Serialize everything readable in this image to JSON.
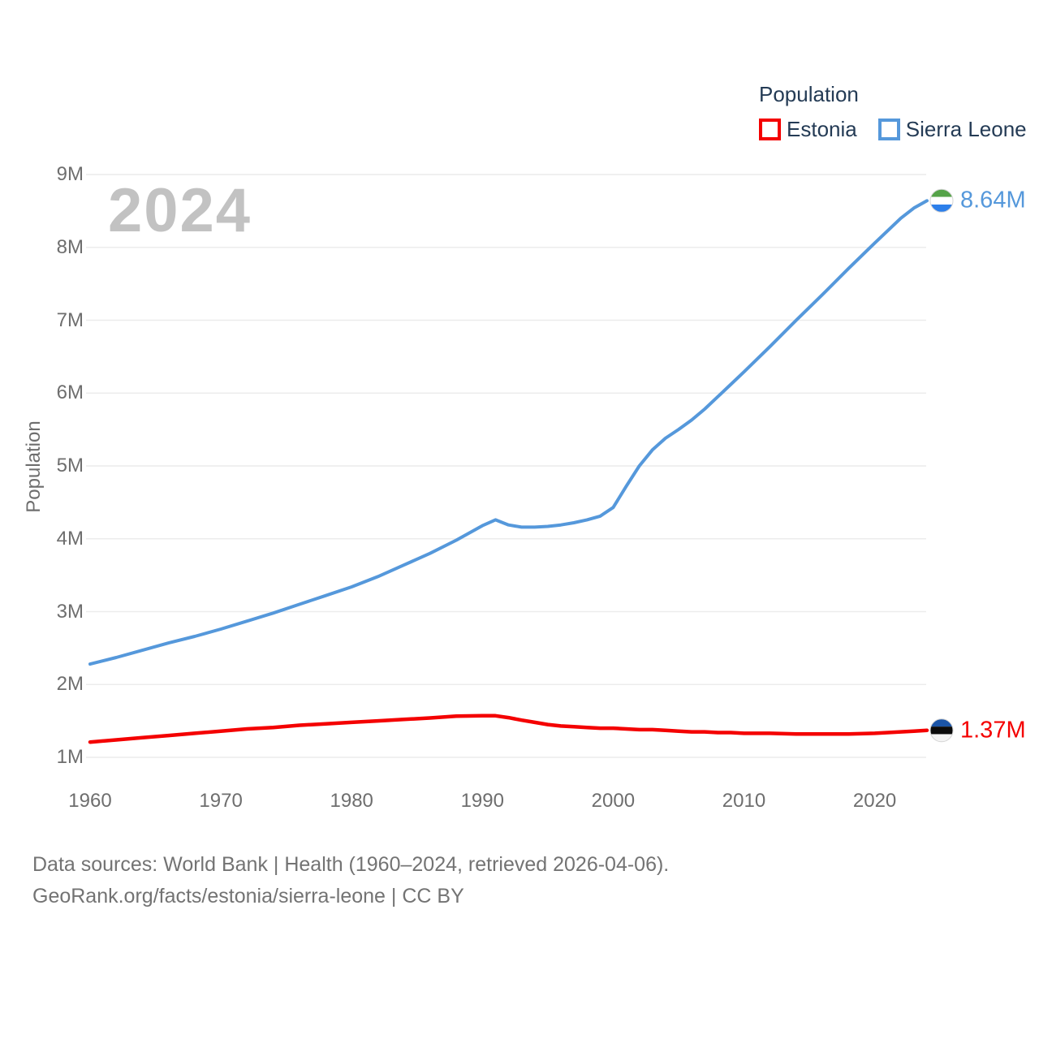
{
  "watermark": "2024",
  "legend": {
    "title": "Population",
    "items": [
      {
        "label": "Estonia",
        "color": "#f40000"
      },
      {
        "label": "Sierra Leone",
        "color": "#5598db"
      }
    ]
  },
  "footer": {
    "line1": "Data sources: World Bank | Health (1960–2024, retrieved 2026-04-06).",
    "line2": "GeoRank.org/facts/estonia/sierra-leone | CC BY"
  },
  "chart_data": {
    "type": "line",
    "title": "Population",
    "xlabel": "",
    "ylabel": "Population",
    "unit": "millions of people",
    "x_range": [
      1960,
      2024
    ],
    "y_range_millions": [
      1,
      9
    ],
    "grid": "horizontal-only",
    "legend_position": "top-right",
    "x_ticks": [
      1960,
      1970,
      1980,
      1990,
      2000,
      2010,
      2020
    ],
    "y_ticks": [
      {
        "value": 1,
        "label": "1M"
      },
      {
        "value": 2,
        "label": "2M"
      },
      {
        "value": 3,
        "label": "3M"
      },
      {
        "value": 4,
        "label": "4M"
      },
      {
        "value": 5,
        "label": "5M"
      },
      {
        "value": 6,
        "label": "6M"
      },
      {
        "value": 7,
        "label": "7M"
      },
      {
        "value": 8,
        "label": "8M"
      },
      {
        "value": 9,
        "label": "9M"
      }
    ],
    "series": [
      {
        "name": "Estonia",
        "color": "#f40000",
        "line_width": 4.5,
        "end_label": "1.37M",
        "end_value_millions": 1.37,
        "flag": {
          "name": "estonia-flag",
          "stripes": [
            "#1b55a8",
            "#0b0b0b",
            "#f4f4f4"
          ]
        },
        "x": [
          1960,
          1962,
          1964,
          1966,
          1968,
          1970,
          1972,
          1974,
          1976,
          1978,
          1980,
          1982,
          1984,
          1986,
          1988,
          1990,
          1991,
          1992,
          1993,
          1994,
          1995,
          1996,
          1997,
          1998,
          1999,
          2000,
          2001,
          2002,
          2003,
          2004,
          2005,
          2006,
          2007,
          2008,
          2009,
          2010,
          2012,
          2014,
          2016,
          2018,
          2020,
          2022,
          2023,
          2024
        ],
        "values_millions": [
          1.21,
          1.24,
          1.27,
          1.3,
          1.33,
          1.36,
          1.39,
          1.41,
          1.44,
          1.46,
          1.48,
          1.5,
          1.52,
          1.54,
          1.565,
          1.57,
          1.57,
          1.545,
          1.51,
          1.48,
          1.45,
          1.43,
          1.42,
          1.41,
          1.4,
          1.4,
          1.39,
          1.38,
          1.38,
          1.37,
          1.36,
          1.35,
          1.35,
          1.34,
          1.34,
          1.33,
          1.33,
          1.32,
          1.32,
          1.32,
          1.33,
          1.35,
          1.36,
          1.37
        ]
      },
      {
        "name": "Sierra Leone",
        "color": "#5598db",
        "line_width": 4,
        "end_label": "8.64M",
        "end_value_millions": 8.64,
        "flag": {
          "name": "sierra-leone-flag",
          "stripes": [
            "#55a348",
            "#ffffff",
            "#2d7fea"
          ]
        },
        "x": [
          1960,
          1962,
          1964,
          1966,
          1968,
          1970,
          1972,
          1974,
          1976,
          1978,
          1980,
          1982,
          1984,
          1986,
          1988,
          1990,
          1991,
          1992,
          1993,
          1994,
          1995,
          1996,
          1997,
          1998,
          1999,
          2000,
          2001,
          2002,
          2003,
          2004,
          2005,
          2006,
          2007,
          2008,
          2009,
          2010,
          2012,
          2014,
          2016,
          2018,
          2020,
          2022,
          2023,
          2024
        ],
        "values_millions": [
          2.28,
          2.37,
          2.47,
          2.57,
          2.66,
          2.76,
          2.87,
          2.98,
          3.1,
          3.22,
          3.34,
          3.48,
          3.64,
          3.8,
          3.98,
          4.18,
          4.26,
          4.19,
          4.16,
          4.16,
          4.17,
          4.19,
          4.22,
          4.26,
          4.31,
          4.43,
          4.72,
          5.0,
          5.22,
          5.38,
          5.5,
          5.63,
          5.78,
          5.95,
          6.12,
          6.29,
          6.64,
          7.0,
          7.35,
          7.71,
          8.06,
          8.4,
          8.54,
          8.64
        ]
      }
    ]
  },
  "colors": {
    "text_dark": "#243b55",
    "axis_text": "#6e6e6e",
    "gridline": "#ececec",
    "watermark": "#c2c2c2",
    "footer_text": "#737373"
  }
}
